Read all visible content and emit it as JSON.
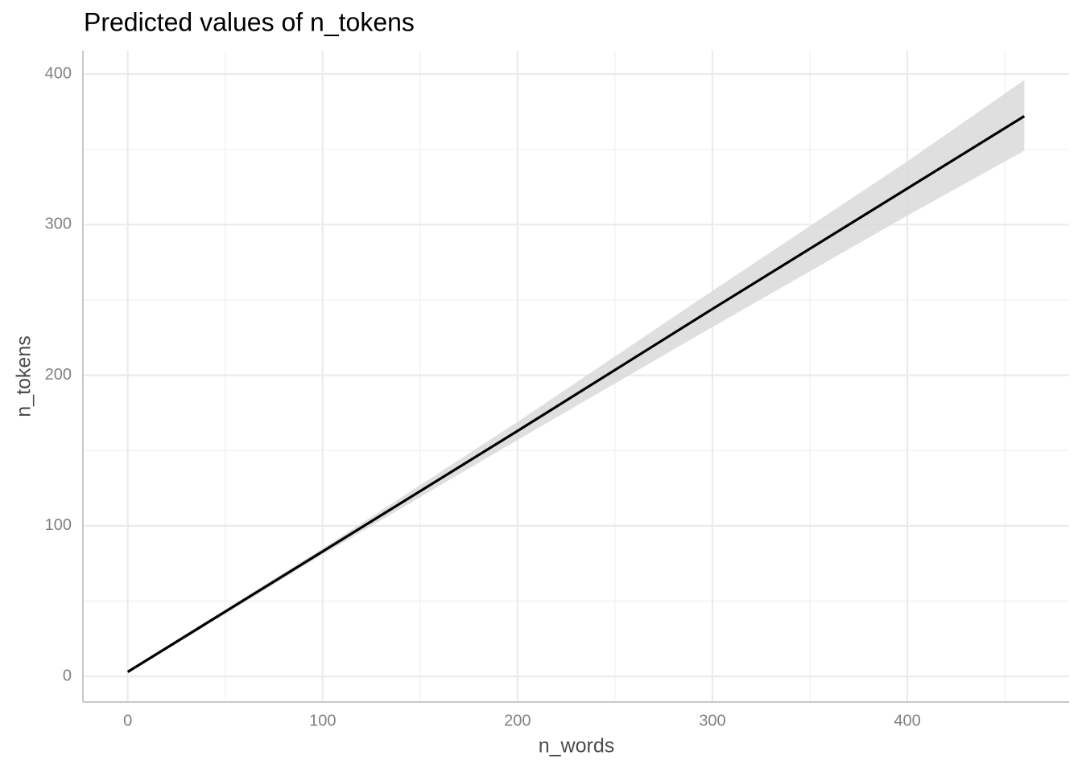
{
  "chart_data": {
    "type": "line",
    "title": "Predicted values of n_tokens",
    "x_label": "n_words",
    "y_label": "n_tokens",
    "x": [
      0,
      100,
      200,
      300,
      400,
      460
    ],
    "series": [
      {
        "name": "n_tokens",
        "color": "#000000",
        "values": [
          3,
          83,
          163,
          244,
          324,
          372
        ],
        "lower": [
          2,
          81,
          157,
          232,
          306,
          349
        ],
        "upper": [
          4,
          85,
          169,
          256,
          342,
          396
        ],
        "band_color": "#d9d9d9"
      }
    ],
    "xlim": [
      -23,
      483
    ],
    "ylim": [
      -17,
      415.5
    ],
    "xticks": [
      0,
      100,
      200,
      300,
      400
    ],
    "yticks": [
      0,
      100,
      200,
      300,
      400
    ],
    "x_minor_ticks": [
      50,
      150,
      250,
      350,
      450
    ],
    "y_minor_ticks": [
      50,
      150,
      250,
      350
    ],
    "grid": true
  }
}
